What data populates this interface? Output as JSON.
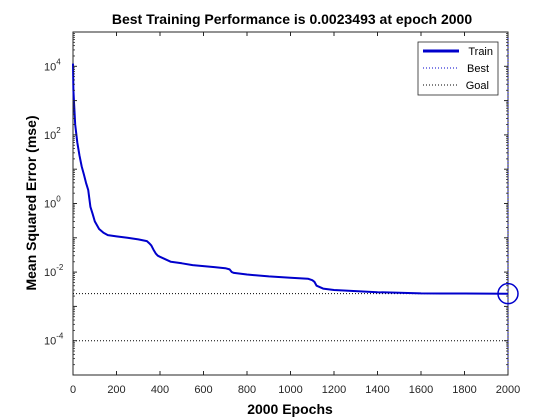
{
  "chart_data": {
    "type": "line",
    "title": "Best Training Performance is 0.0023493 at epoch 2000",
    "xlabel": "2000 Epochs",
    "ylabel": "Mean Squared Error  (mse)",
    "yscale": "log",
    "xlim": [
      0,
      2000
    ],
    "ylim": [
      1e-05,
      100000
    ],
    "x_ticks": [
      0,
      200,
      400,
      600,
      800,
      1000,
      1200,
      1400,
      1600,
      1800,
      2000
    ],
    "y_ticks": [
      {
        "value": 0.0001,
        "base": "10",
        "exp": "-4"
      },
      {
        "value": 0.01,
        "base": "10",
        "exp": "-2"
      },
      {
        "value": 1,
        "base": "10",
        "exp": "0"
      },
      {
        "value": 100,
        "base": "10",
        "exp": "2"
      },
      {
        "value": 10000,
        "base": "10",
        "exp": "4"
      }
    ],
    "grid": false,
    "legend_position": "top-right",
    "legend": [
      "Train",
      "Best",
      "Goal"
    ],
    "series": [
      {
        "name": "Train",
        "color": "#0000cc",
        "x": [
          0,
          2,
          5,
          10,
          20,
          30,
          40,
          50,
          60,
          70,
          80,
          90,
          100,
          120,
          140,
          160,
          200,
          250,
          300,
          340,
          350,
          360,
          370,
          380,
          390,
          400,
          450,
          500,
          550,
          600,
          650,
          700,
          720,
          730,
          740,
          800,
          900,
          1000,
          1080,
          1100,
          1110,
          1120,
          1150,
          1200,
          1300,
          1400,
          1500,
          1600,
          1700,
          1800,
          1900,
          2000
        ],
        "y": [
          12000,
          2000,
          800,
          200,
          60,
          25,
          12,
          7,
          4,
          2.5,
          0.8,
          0.5,
          0.3,
          0.18,
          0.14,
          0.12,
          0.11,
          0.1,
          0.09,
          0.08,
          0.07,
          0.06,
          0.045,
          0.035,
          0.03,
          0.028,
          0.02,
          0.018,
          0.016,
          0.015,
          0.014,
          0.013,
          0.012,
          0.01,
          0.0095,
          0.0085,
          0.0075,
          0.0068,
          0.0064,
          0.0058,
          0.0052,
          0.004,
          0.0033,
          0.003,
          0.0028,
          0.0026,
          0.0025,
          0.0024,
          0.00238,
          0.00237,
          0.00236,
          0.0023493
        ]
      }
    ],
    "best": {
      "name": "Best",
      "epoch": 2000,
      "value": 0.0023493,
      "color": "#0000cc"
    },
    "goal": {
      "name": "Goal",
      "value": 0.0001,
      "color": "#000000"
    }
  }
}
